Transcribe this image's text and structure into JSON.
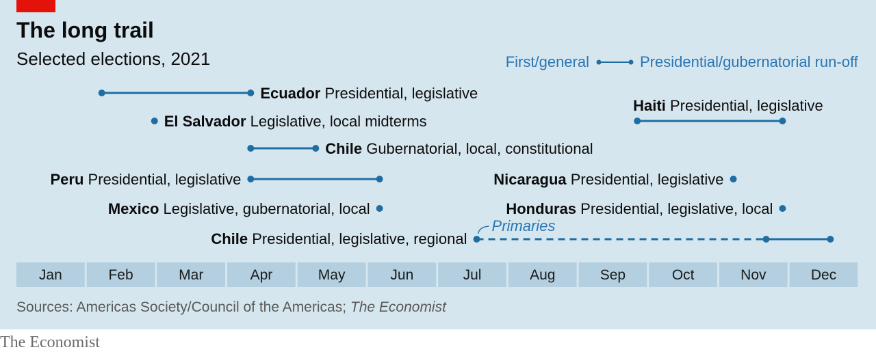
{
  "header": {
    "title": "The long trail",
    "subtitle": "Selected elections, 2021"
  },
  "colors": {
    "background": "#d6e6ef",
    "accent_red": "#e3120b",
    "line": "#1f6ea3",
    "legend_text": "#2b76b3",
    "month_band": "#b3cfe0",
    "text": "#0c0c0c",
    "muted": "#595959"
  },
  "chart_data": {
    "type": "timeline",
    "title": "The long trail",
    "subtitle": "Selected elections, 2021",
    "x_axis": {
      "categories": [
        "Jan",
        "Feb",
        "Mar",
        "Apr",
        "May",
        "Jun",
        "Jul",
        "Aug",
        "Sep",
        "Oct",
        "Nov",
        "Dec"
      ]
    },
    "legend": {
      "first_label": "First/general",
      "second_label": "Presidential/gubernatorial run-off",
      "position": "top-right"
    },
    "series": [
      {
        "country": "Ecuador",
        "desc": "Presidential, legislative",
        "start": "2021-02-07",
        "end": "2021-04-11"
      },
      {
        "country": "El Salvador",
        "desc": "Legislative, local midterms",
        "start": "2021-02-28"
      },
      {
        "country": "Chile",
        "desc": "Gubernatorial, local, constitutional",
        "start": "2021-04-11",
        "end": "2021-05-09"
      },
      {
        "country": "Peru",
        "desc": "Presidential, legislative",
        "start": "2021-04-11",
        "end": "2021-06-06"
      },
      {
        "country": "Mexico",
        "desc": "Legislative, gubernatorial, local",
        "start": "2021-06-06"
      },
      {
        "country": "Chile",
        "desc": "Presidential, legislative, regional",
        "primaries": "2021-07-18",
        "start": "2021-11-21",
        "end": "2021-12-19",
        "primaries_label": "Primaries"
      },
      {
        "country": "Haiti",
        "desc": "Presidential, legislative",
        "start": "2021-09-26",
        "end": "2021-11-28"
      },
      {
        "country": "Nicaragua",
        "desc": "Presidential, legislative",
        "start": "2021-11-07"
      },
      {
        "country": "Honduras",
        "desc": "Presidential, legislative, local",
        "start": "2021-11-28"
      }
    ]
  },
  "footer": {
    "source_prefix": "Sources: Americas Society/Council of the Americas; ",
    "source_italic": "The Economist",
    "brand": "The Economist"
  }
}
